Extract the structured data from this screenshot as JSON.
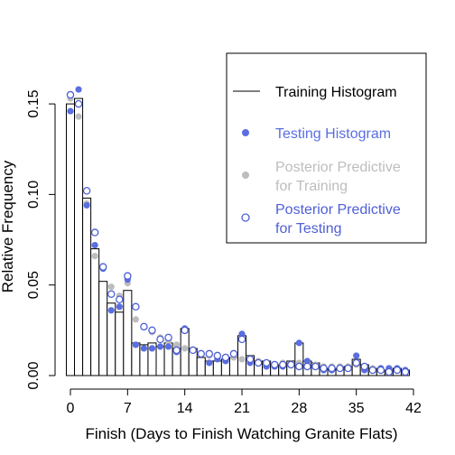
{
  "chart_data": {
    "type": "bar",
    "title": "",
    "xlabel": "Finish (Days to Finish Watching Granite Flats)",
    "ylabel": "Relative Frequency",
    "xlim": [
      -1,
      42
    ],
    "ylim": [
      0,
      0.165
    ],
    "x_ticks": [
      0,
      7,
      14,
      21,
      28,
      35,
      42
    ],
    "y_ticks": [
      0.0,
      0.05,
      0.1,
      0.15
    ],
    "y_tick_labels": [
      "0.00",
      "0.05",
      "0.10",
      "0.15"
    ],
    "x": [
      0,
      1,
      2,
      3,
      4,
      5,
      6,
      7,
      8,
      9,
      10,
      11,
      12,
      13,
      14,
      15,
      16,
      17,
      18,
      19,
      20,
      21,
      22,
      23,
      24,
      25,
      26,
      27,
      28,
      29,
      30,
      31,
      32,
      33,
      34,
      35,
      36,
      37,
      38,
      39,
      40,
      41
    ],
    "series": [
      {
        "name": "Training Histogram",
        "kind": "bar",
        "color": "#000000",
        "values": [
          0.15,
          0.153,
          0.098,
          0.07,
          0.052,
          0.04,
          0.035,
          0.047,
          0.018,
          0.017,
          0.018,
          0.016,
          0.018,
          0.015,
          0.026,
          0.015,
          0.01,
          0.008,
          0.008,
          0.009,
          0.01,
          0.022,
          0.011,
          0.008,
          0.008,
          0.006,
          0.006,
          0.008,
          0.018,
          0.008,
          0.007,
          0.004,
          0.003,
          0.004,
          0.005,
          0.009,
          0.006,
          0.004,
          0.003,
          0.003,
          0.004,
          0.003
        ]
      },
      {
        "name": "Testing Histogram",
        "kind": "filled-point",
        "color": "#5a6ee0",
        "values": [
          0.146,
          0.158,
          0.094,
          0.072,
          0.059,
          0.036,
          0.038,
          0.053,
          0.017,
          0.015,
          0.015,
          0.016,
          0.016,
          0.013,
          0.026,
          0.014,
          0.012,
          0.007,
          0.009,
          0.008,
          0.012,
          0.023,
          0.007,
          0.007,
          0.005,
          0.005,
          0.005,
          0.006,
          0.018,
          0.008,
          0.005,
          0.003,
          0.003,
          0.004,
          0.004,
          0.011,
          0.003,
          0.003,
          0.004,
          0.004,
          0.004,
          0.003
        ]
      },
      {
        "name": "Posterior Predictive\nfor Training",
        "kind": "filled-point",
        "color": "#bdbdbd",
        "values": [
          0.153,
          0.143,
          0.095,
          0.066,
          0.06,
          0.049,
          0.044,
          0.051,
          0.031,
          0.027,
          0.024,
          0.021,
          0.019,
          0.017,
          0.015,
          0.014,
          0.012,
          0.011,
          0.01,
          0.009,
          0.01,
          0.009,
          0.008,
          0.008,
          0.007,
          0.006,
          0.007,
          0.006,
          0.007,
          0.006,
          0.006,
          0.005,
          0.005,
          0.005,
          0.005,
          0.006,
          0.004,
          0.004,
          0.004,
          0.004,
          0.004,
          0.003
        ]
      },
      {
        "name": "Posterior Predictive\nfor Testing",
        "kind": "open-point",
        "color": "#4e5fd6",
        "values": [
          0.155,
          0.15,
          0.102,
          0.079,
          0.06,
          0.045,
          0.042,
          0.055,
          0.038,
          0.027,
          0.025,
          0.02,
          0.021,
          0.014,
          0.025,
          0.014,
          0.012,
          0.012,
          0.011,
          0.01,
          0.012,
          0.02,
          0.009,
          0.007,
          0.007,
          0.006,
          0.006,
          0.006,
          0.005,
          0.005,
          0.005,
          0.004,
          0.004,
          0.004,
          0.004,
          0.007,
          0.005,
          0.003,
          0.003,
          0.002,
          0.003,
          0.002
        ]
      }
    ],
    "legend": {
      "position": "top-right",
      "items": [
        {
          "label": "Training Histogram",
          "symbol": "line",
          "color": "#000000",
          "text_color": "#000000"
        },
        {
          "label": "Testing Histogram",
          "symbol": "filled-circle",
          "color": "#5a6ee0",
          "text_color": "#5a6ee0"
        },
        {
          "label": "Posterior Predictive\nfor Training",
          "symbol": "filled-circle",
          "color": "#bdbdbd",
          "text_color": "#bdbdbd"
        },
        {
          "label": "Posterior Predictive\nfor Testing",
          "symbol": "open-circle",
          "color": "#4e5fd6",
          "text_color": "#4e5fd6"
        }
      ]
    },
    "grid": false
  }
}
